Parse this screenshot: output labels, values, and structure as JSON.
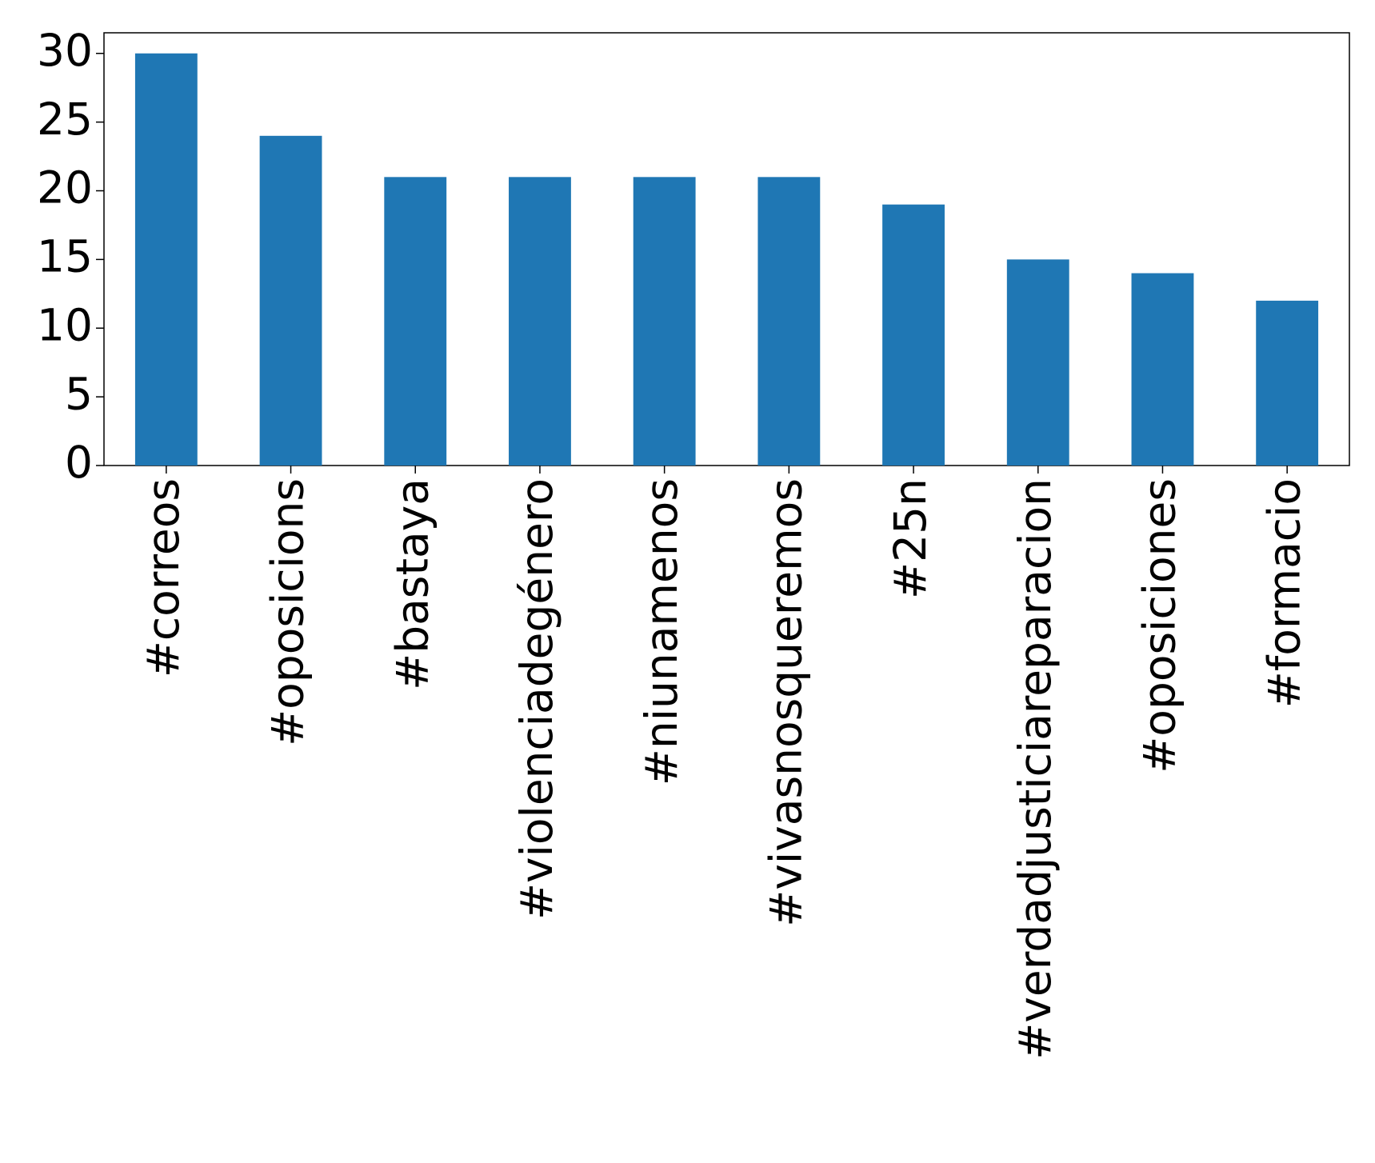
{
  "chart_data": {
    "type": "bar",
    "categories": [
      "#correos",
      "#oposicions",
      "#bastaya",
      "#violenciadegénero",
      "#niunamenos",
      "#vivasnosqueremos",
      "#25n",
      "#verdadjusticiareparacion",
      "#oposiciones",
      "#formacio"
    ],
    "values": [
      30,
      24,
      21,
      21,
      21,
      21,
      19,
      15,
      14,
      12
    ],
    "color": "#1f77b4",
    "ylim": [
      0,
      31.5
    ],
    "yticks": [
      0,
      5,
      10,
      15,
      20,
      25,
      30
    ],
    "grid": false
  }
}
